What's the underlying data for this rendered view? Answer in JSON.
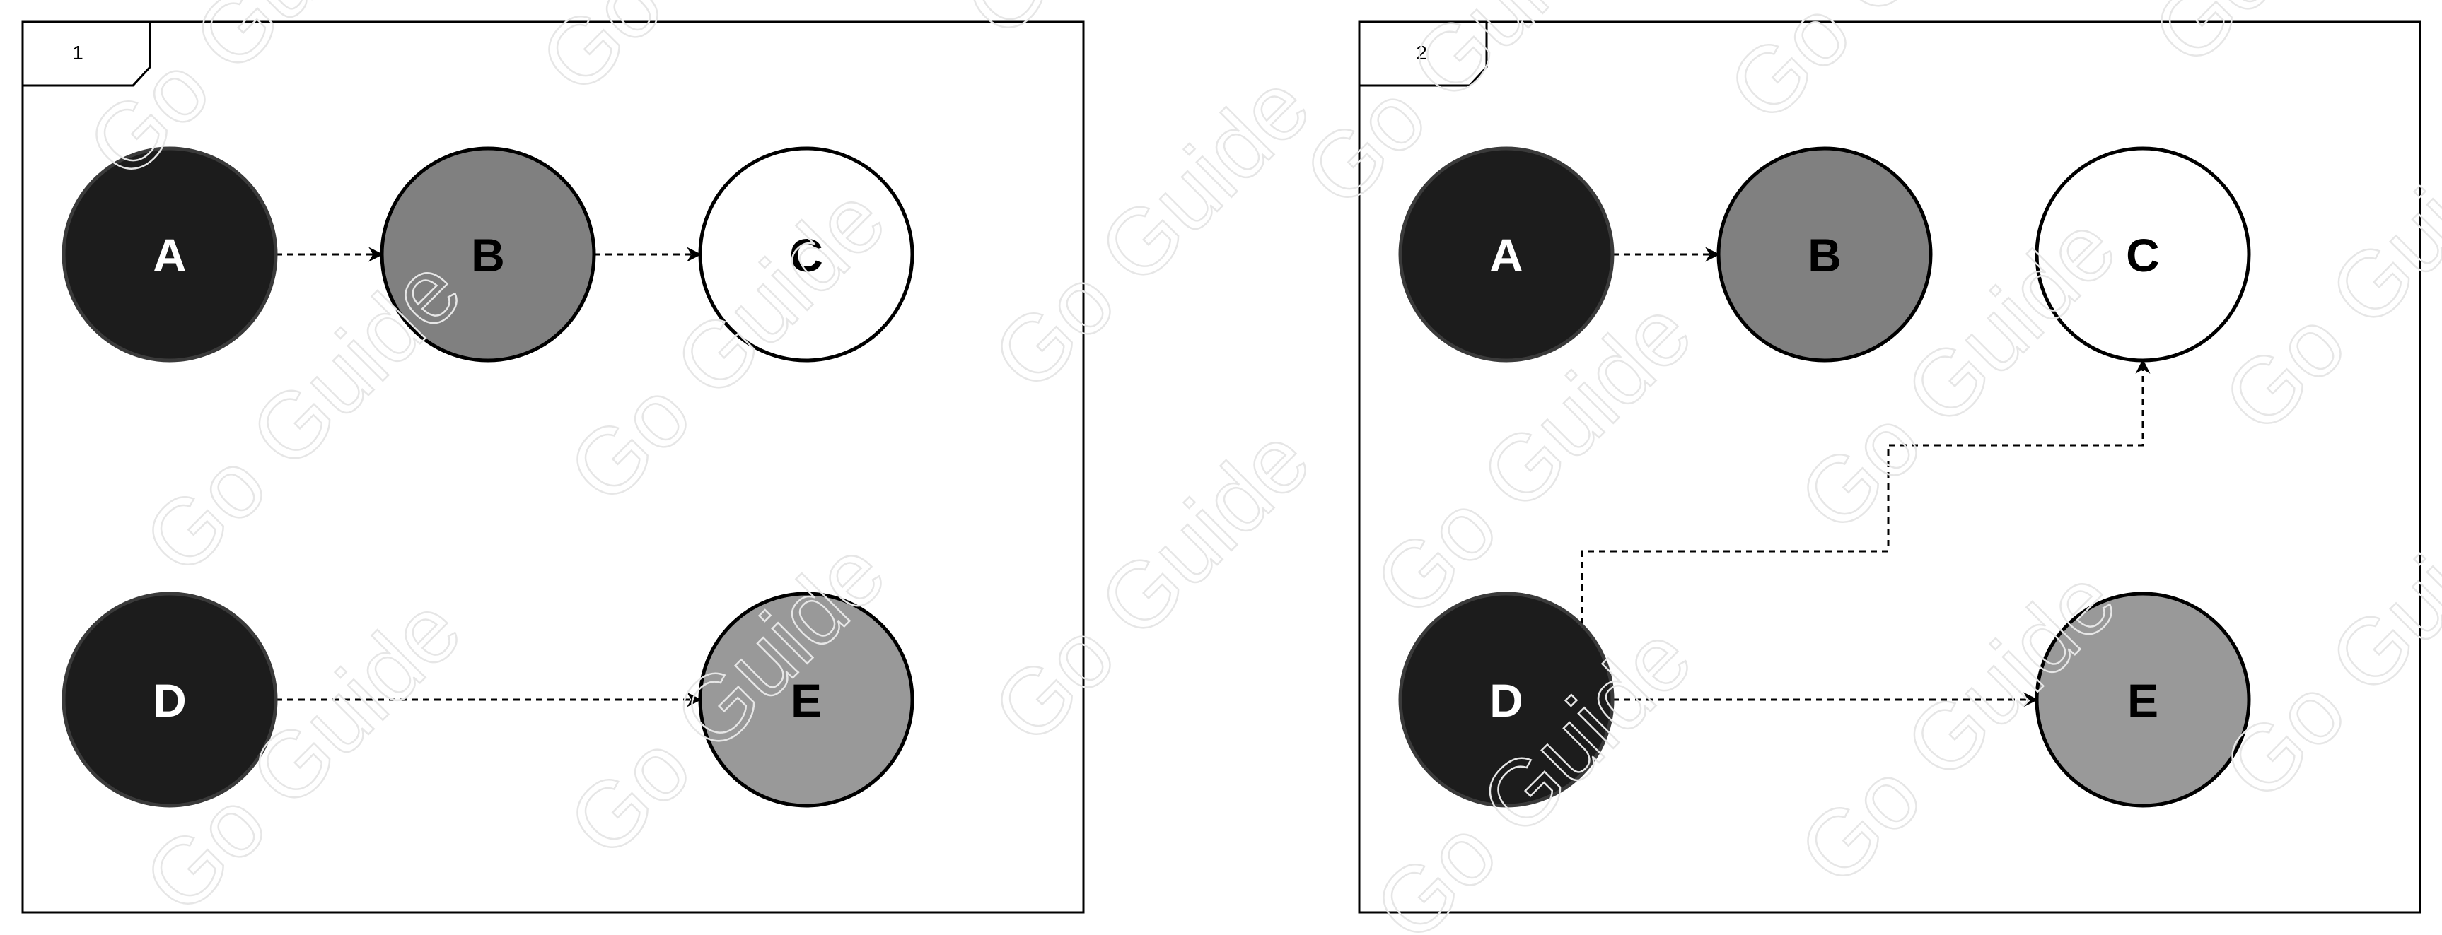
{
  "watermark": "Go Guide",
  "colors": {
    "black_fill": "#1c1c1c",
    "black_stroke": "#3a3a3a",
    "dark_gray_fill": "#808080",
    "light_gray_fill": "#999999",
    "white_fill": "#ffffff",
    "outline": "#000000",
    "edge": "#000000"
  },
  "panels": [
    {
      "id": "panel-1",
      "label": "1",
      "nodes": [
        {
          "id": "A",
          "label": "A",
          "fill": "black"
        },
        {
          "id": "B",
          "label": "B",
          "fill": "dark-gray"
        },
        {
          "id": "C",
          "label": "C",
          "fill": "white"
        },
        {
          "id": "D",
          "label": "D",
          "fill": "black"
        },
        {
          "id": "E",
          "label": "E",
          "fill": "light-gray"
        }
      ],
      "edges": [
        {
          "from": "A",
          "to": "B",
          "style": "dashed"
        },
        {
          "from": "B",
          "to": "C",
          "style": "dashed"
        },
        {
          "from": "D",
          "to": "E",
          "style": "dashed"
        }
      ]
    },
    {
      "id": "panel-2",
      "label": "2",
      "nodes": [
        {
          "id": "A",
          "label": "A",
          "fill": "black"
        },
        {
          "id": "B",
          "label": "B",
          "fill": "dark-gray"
        },
        {
          "id": "C",
          "label": "C",
          "fill": "white"
        },
        {
          "id": "D",
          "label": "D",
          "fill": "black"
        },
        {
          "id": "E",
          "label": "E",
          "fill": "light-gray"
        }
      ],
      "edges": [
        {
          "from": "A",
          "to": "B",
          "style": "dashed"
        },
        {
          "from": "D",
          "to": "C",
          "style": "dashed-orthogonal"
        },
        {
          "from": "D",
          "to": "E",
          "style": "dashed"
        }
      ]
    }
  ]
}
